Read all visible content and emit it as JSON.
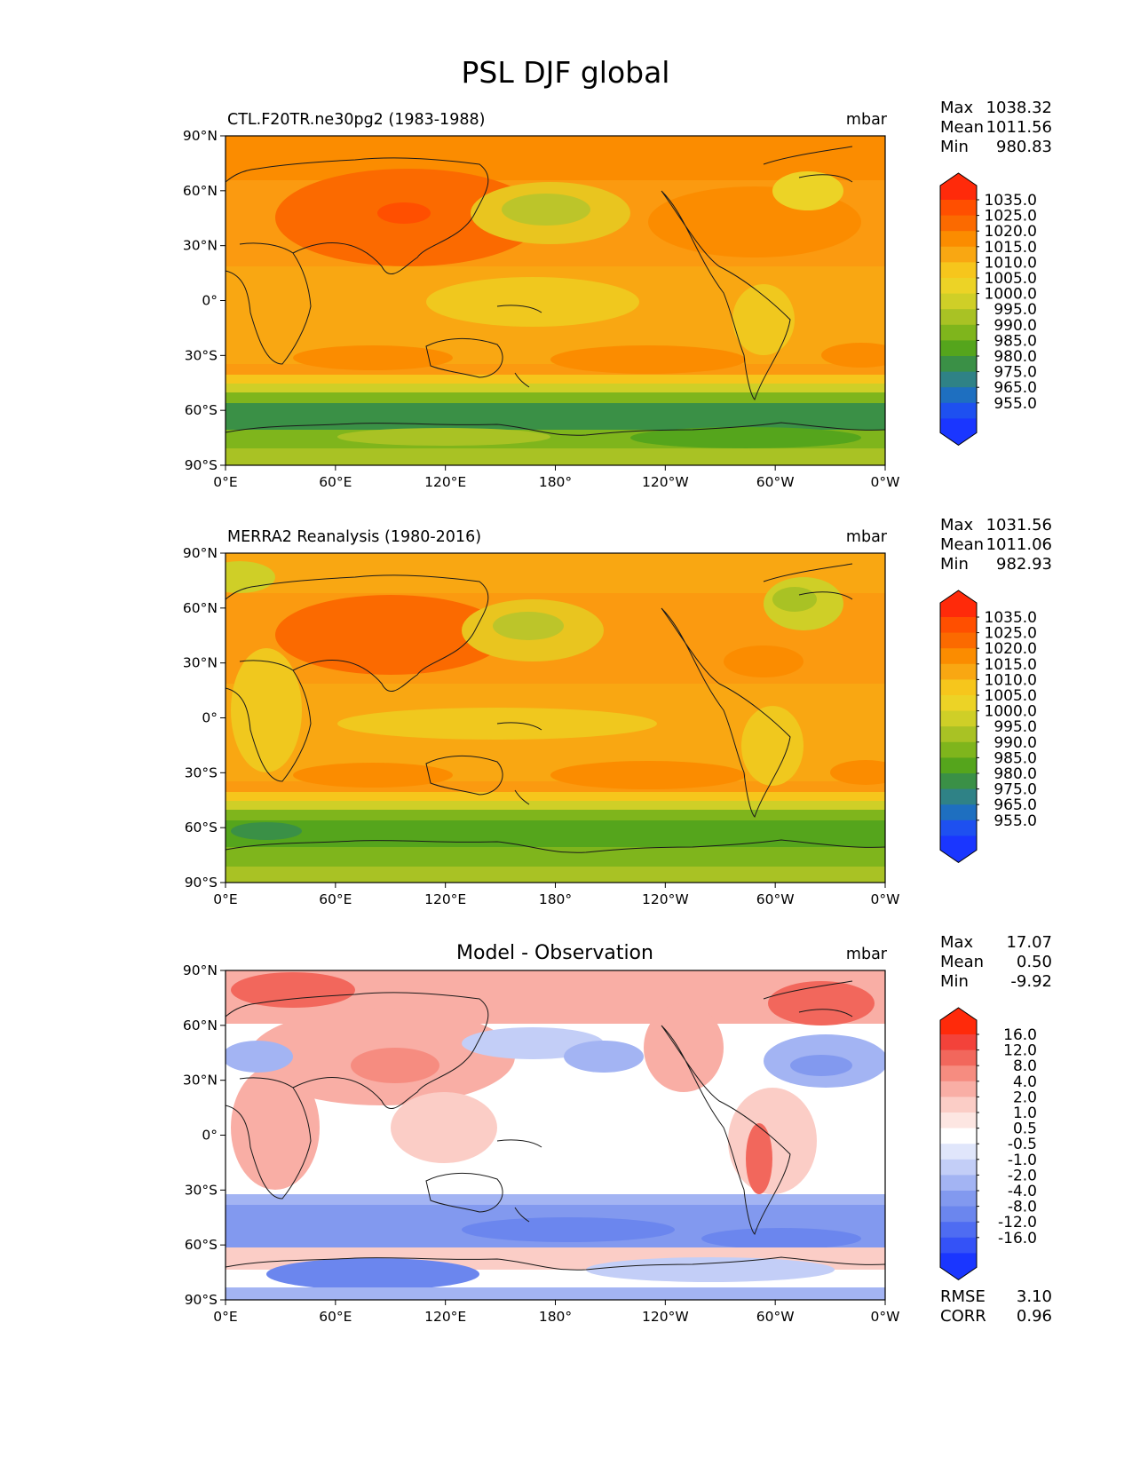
{
  "figure": {
    "title": "PSL DJF global"
  },
  "lon_ticks": [
    "0°E",
    "60°E",
    "120°E",
    "180°",
    "120°W",
    "60°W",
    "0°W"
  ],
  "lat_ticks": [
    "90°N",
    "60°N",
    "30°N",
    "0°",
    "30°S",
    "60°S",
    "90°S"
  ],
  "chart_data": [
    {
      "type": "heatmap",
      "panel": "test",
      "title_left": "CTL.F20TR.ne30pg2 (1983-1988)",
      "title_center": "",
      "units": "mbar",
      "stats": [
        {
          "label": "Max",
          "value": "1038.32"
        },
        {
          "label": "Mean",
          "value": "1011.56"
        },
        {
          "label": "Min",
          "value": "980.83"
        }
      ],
      "colorbar_levels": [
        "1035.0",
        "1025.0",
        "1020.0",
        "1015.0",
        "1010.0",
        "1005.0",
        "1000.0",
        "995.0",
        "990.0",
        "985.0",
        "980.0",
        "975.0",
        "965.0",
        "955.0"
      ],
      "colorbar_colors": [
        "#ff2a0a",
        "#ff4f00",
        "#fb6a00",
        "#fb8c00",
        "#f9a712",
        "#f6c61c",
        "#ecd326",
        "#cfcf27",
        "#a9c224",
        "#7fb51c",
        "#55a51c",
        "#3a9046",
        "#2f8286",
        "#1e6fc0",
        "#1e50f0",
        "#1a36ff"
      ],
      "xlim": [
        0,
        360
      ],
      "ylim": [
        -90,
        90
      ],
      "zonal_mean_profile": [
        {
          "lat": 90,
          "value": 1018
        },
        {
          "lat": 60,
          "value": 1020
        },
        {
          "lat": 30,
          "value": 1018
        },
        {
          "lat": 0,
          "value": 1010
        },
        {
          "lat": -30,
          "value": 1016
        },
        {
          "lat": -45,
          "value": 1010
        },
        {
          "lat": -60,
          "value": 985
        },
        {
          "lat": -70,
          "value": 988
        },
        {
          "lat": -90,
          "value": 998
        }
      ]
    },
    {
      "type": "heatmap",
      "panel": "reference",
      "title_left": "MERRA2 Reanalysis (1980-2016)",
      "title_center": "",
      "units": "mbar",
      "stats": [
        {
          "label": "Max",
          "value": "1031.56"
        },
        {
          "label": "Mean",
          "value": "1011.06"
        },
        {
          "label": "Min",
          "value": "982.93"
        }
      ],
      "colorbar_levels": [
        "1035.0",
        "1025.0",
        "1020.0",
        "1015.0",
        "1010.0",
        "1005.0",
        "1000.0",
        "995.0",
        "990.0",
        "985.0",
        "980.0",
        "975.0",
        "965.0",
        "955.0"
      ],
      "colorbar_colors": [
        "#ff2a0a",
        "#ff4f00",
        "#fb6a00",
        "#fb8c00",
        "#f9a712",
        "#f6c61c",
        "#ecd326",
        "#cfcf27",
        "#a9c224",
        "#7fb51c",
        "#55a51c",
        "#3a9046",
        "#2f8286",
        "#1e6fc0",
        "#1e50f0",
        "#1a36ff"
      ],
      "xlim": [
        0,
        360
      ],
      "ylim": [
        -90,
        90
      ],
      "zonal_mean_profile": [
        {
          "lat": 90,
          "value": 1014
        },
        {
          "lat": 60,
          "value": 1016
        },
        {
          "lat": 30,
          "value": 1018
        },
        {
          "lat": 0,
          "value": 1010
        },
        {
          "lat": -30,
          "value": 1016
        },
        {
          "lat": -45,
          "value": 1010
        },
        {
          "lat": -60,
          "value": 988
        },
        {
          "lat": -70,
          "value": 990
        },
        {
          "lat": -90,
          "value": 996
        }
      ]
    },
    {
      "type": "heatmap",
      "panel": "difference",
      "title_left": "",
      "title_center": "Model - Observation",
      "units": "mbar",
      "stats": [
        {
          "label": "Max",
          "value": "17.07"
        },
        {
          "label": "Mean",
          "value": "0.50"
        },
        {
          "label": "Min",
          "value": "-9.92"
        }
      ],
      "extra_stats": [
        {
          "label": "RMSE",
          "value": "3.10"
        },
        {
          "label": "CORR",
          "value": "0.96"
        }
      ],
      "colorbar_levels": [
        "16.0",
        "12.0",
        "8.0",
        "4.0",
        "2.0",
        "1.0",
        "0.5",
        "-0.5",
        "-1.0",
        "-2.0",
        "-4.0",
        "-8.0",
        "-12.0",
        "-16.0"
      ],
      "colorbar_colors": [
        "#ff2a0a",
        "#f3423a",
        "#f2675c",
        "#f68c80",
        "#f9aea5",
        "#fbcdc6",
        "#fde6e2",
        "#ffffff",
        "#e0e6fb",
        "#c3cef7",
        "#a3b4f3",
        "#8299ef",
        "#6b86ee",
        "#4e6cf2",
        "#3452f7",
        "#1a36ff"
      ],
      "xlim": [
        0,
        360
      ],
      "ylim": [
        -90,
        90
      ],
      "zonal_mean_profile": [
        {
          "lat": 75,
          "value": 8
        },
        {
          "lat": 50,
          "value": -4
        },
        {
          "lat": 30,
          "value": 2
        },
        {
          "lat": 0,
          "value": 0.5
        },
        {
          "lat": -40,
          "value": -6
        },
        {
          "lat": -55,
          "value": -8
        },
        {
          "lat": -75,
          "value": 2
        },
        {
          "lat": -85,
          "value": -6
        }
      ]
    }
  ]
}
